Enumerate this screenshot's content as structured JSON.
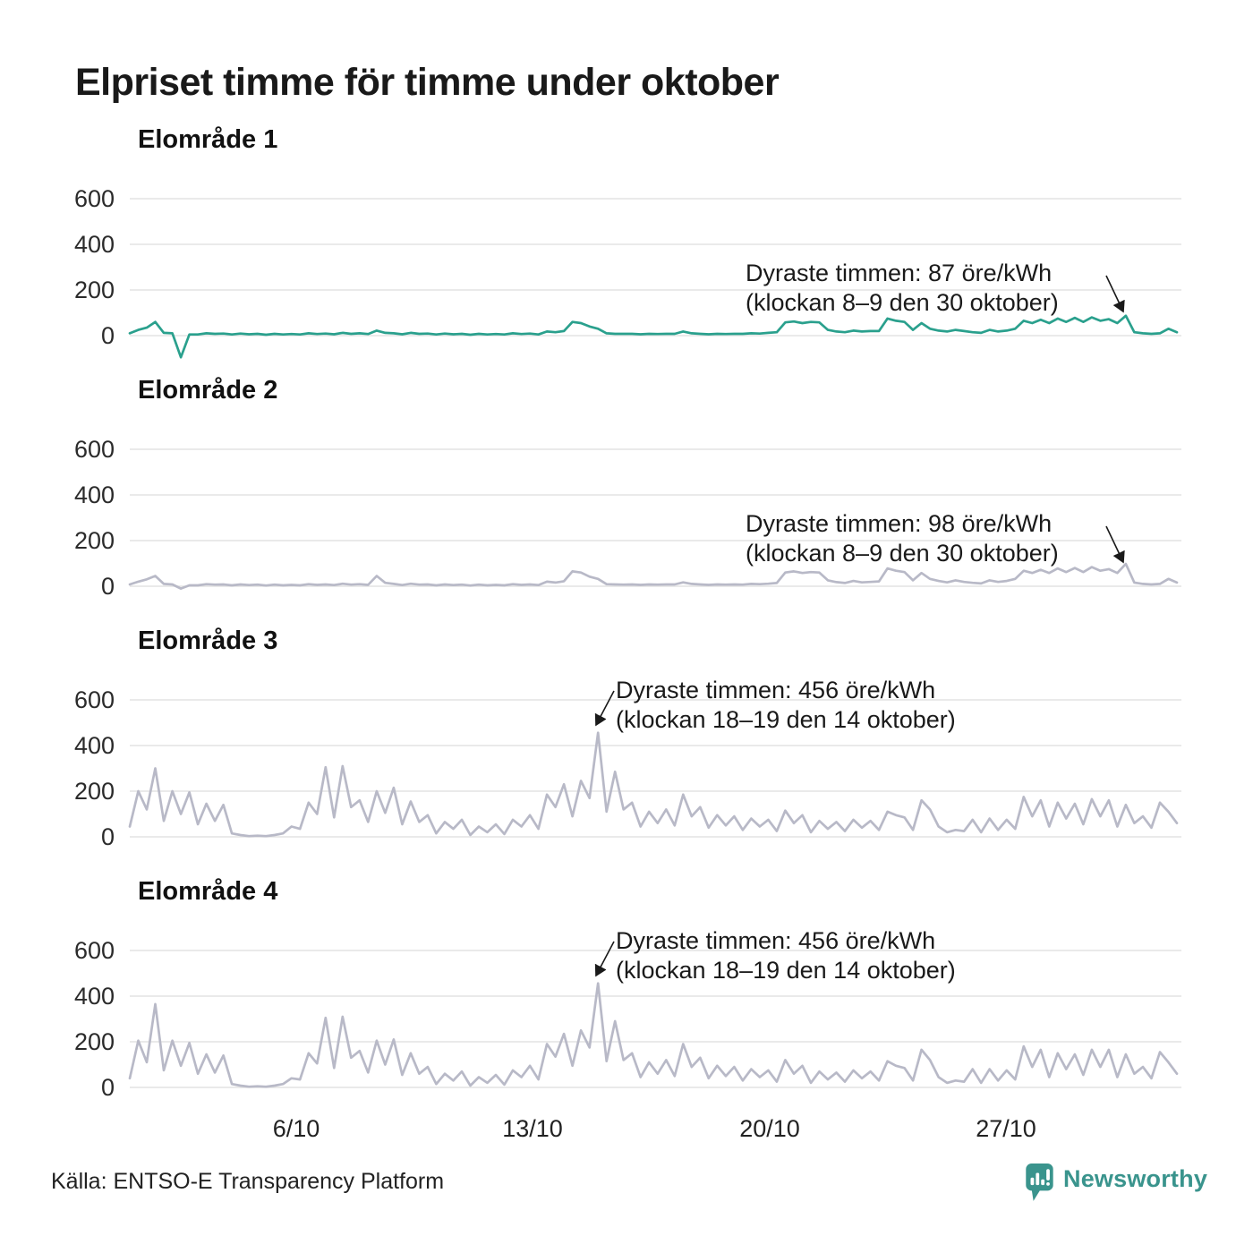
{
  "title": "Elpriset timme för timme under oktober",
  "source": "Källa: ENTSO-E Transparency Platform",
  "brand": {
    "name": "Newsworthy",
    "color": "#3a948d"
  },
  "colors": {
    "teal_line": "#2aa08d",
    "lavender_line": "#b8b9c7",
    "grid": "#e4e4e4",
    "text": "#1a1a1a"
  },
  "y_axis": {
    "ticks": [
      600,
      400,
      200,
      0
    ],
    "tick_labels": [
      "600",
      "400",
      "200",
      "0"
    ]
  },
  "x_axis": {
    "tick_labels": [
      "6/10",
      "13/10",
      "20/10",
      "27/10"
    ]
  },
  "chart_data": [
    {
      "type": "line",
      "name": "Elområde 1",
      "color": "#2aa08d",
      "unit": "öre/kWh",
      "x_range": "1–31 oktober, timvärden (4 punkter per dygn)",
      "ylim": [
        -120,
        700
      ],
      "annotation": {
        "line1": "Dyraste timmen: 87 öre/kWh",
        "line2": "(klockan 8–9 den 30 oktober)"
      },
      "values": [
        10,
        25,
        35,
        60,
        12,
        10,
        -95,
        5,
        5,
        10,
        8,
        9,
        5,
        9,
        6,
        8,
        4,
        8,
        5,
        7,
        5,
        10,
        7,
        9,
        6,
        12,
        8,
        10,
        7,
        22,
        12,
        10,
        6,
        12,
        8,
        9,
        5,
        9,
        6,
        8,
        4,
        8,
        5,
        7,
        5,
        10,
        7,
        9,
        5,
        18,
        15,
        20,
        60,
        55,
        40,
        30,
        10,
        8,
        8,
        8,
        6,
        8,
        7,
        8,
        8,
        18,
        10,
        8,
        6,
        8,
        7,
        8,
        8,
        10,
        9,
        12,
        15,
        58,
        62,
        55,
        60,
        58,
        25,
        18,
        15,
        22,
        18,
        20,
        20,
        75,
        65,
        60,
        25,
        55,
        30,
        22,
        18,
        25,
        20,
        15,
        12,
        25,
        18,
        22,
        30,
        65,
        55,
        70,
        55,
        75,
        60,
        78,
        60,
        80,
        65,
        72,
        55,
        87,
        15,
        10,
        8,
        10,
        30,
        15
      ]
    },
    {
      "type": "line",
      "name": "Elområde 2",
      "color": "#b8b9c7",
      "unit": "öre/kWh",
      "x_range": "1–31 oktober, timvärden (4 punkter per dygn)",
      "ylim": [
        -120,
        700
      ],
      "annotation": {
        "line1": "Dyraste timmen: 98 öre/kWh",
        "line2": "(klockan 8–9 den 30 oktober)"
      },
      "values": [
        8,
        20,
        30,
        45,
        10,
        8,
        -10,
        4,
        4,
        9,
        7,
        8,
        4,
        8,
        5,
        7,
        3,
        7,
        4,
        6,
        4,
        9,
        6,
        8,
        5,
        11,
        7,
        9,
        6,
        45,
        15,
        10,
        5,
        11,
        7,
        8,
        4,
        8,
        5,
        7,
        3,
        7,
        4,
        6,
        4,
        9,
        6,
        8,
        5,
        20,
        16,
        22,
        65,
        60,
        42,
        32,
        9,
        8,
        7,
        8,
        6,
        8,
        7,
        8,
        8,
        17,
        10,
        8,
        6,
        8,
        7,
        8,
        7,
        10,
        9,
        11,
        14,
        60,
        65,
        58,
        62,
        60,
        26,
        18,
        14,
        23,
        17,
        19,
        21,
        78,
        68,
        62,
        26,
        58,
        32,
        23,
        17,
        26,
        19,
        15,
        12,
        26,
        19,
        23,
        32,
        68,
        58,
        72,
        58,
        78,
        62,
        80,
        62,
        84,
        68,
        75,
        58,
        98,
        16,
        10,
        8,
        10,
        32,
        16
      ]
    },
    {
      "type": "line",
      "name": "Elområde 3",
      "color": "#b8b9c7",
      "unit": "öre/kWh",
      "x_range": "1–31 oktober, timvärden (4 punkter per dygn)",
      "ylim": [
        -120,
        700
      ],
      "annotation": {
        "line1": "Dyraste timmen: 456 öre/kWh",
        "line2": "(klockan 18–19 den 14 oktober)"
      },
      "values": [
        45,
        200,
        120,
        300,
        70,
        200,
        100,
        195,
        55,
        145,
        70,
        140,
        15,
        8,
        3,
        5,
        3,
        8,
        15,
        45,
        35,
        150,
        100,
        305,
        85,
        310,
        130,
        160,
        65,
        200,
        105,
        215,
        55,
        155,
        65,
        95,
        15,
        65,
        35,
        75,
        8,
        45,
        20,
        55,
        12,
        75,
        45,
        95,
        35,
        185,
        130,
        230,
        90,
        245,
        170,
        456,
        110,
        285,
        120,
        150,
        45,
        110,
        60,
        120,
        50,
        185,
        90,
        130,
        40,
        95,
        50,
        90,
        30,
        80,
        45,
        75,
        25,
        115,
        60,
        95,
        20,
        70,
        35,
        65,
        25,
        75,
        40,
        70,
        30,
        110,
        95,
        85,
        30,
        160,
        120,
        45,
        20,
        30,
        25,
        75,
        20,
        80,
        30,
        75,
        35,
        175,
        90,
        160,
        45,
        150,
        80,
        145,
        55,
        165,
        90,
        160,
        45,
        140,
        60,
        90,
        40,
        150,
        110,
        60
      ]
    },
    {
      "type": "line",
      "name": "Elområde 4",
      "color": "#b8b9c7",
      "unit": "öre/kWh",
      "x_range": "1–31 oktober, timvärden (4 punkter per dygn)",
      "ylim": [
        -120,
        700
      ],
      "annotation": {
        "line1": "Dyraste timmen: 456 öre/kWh",
        "line2": "(klockan 18–19 den 14 oktober)"
      },
      "values": [
        40,
        205,
        110,
        365,
        75,
        205,
        95,
        195,
        60,
        145,
        65,
        140,
        15,
        8,
        3,
        5,
        3,
        8,
        15,
        40,
        35,
        150,
        105,
        305,
        85,
        310,
        130,
        160,
        65,
        205,
        100,
        210,
        55,
        150,
        60,
        90,
        15,
        60,
        30,
        70,
        8,
        45,
        20,
        55,
        12,
        75,
        45,
        95,
        35,
        190,
        135,
        235,
        95,
        250,
        175,
        456,
        115,
        290,
        120,
        150,
        45,
        110,
        60,
        120,
        50,
        190,
        90,
        130,
        40,
        95,
        50,
        90,
        30,
        80,
        45,
        75,
        25,
        120,
        60,
        95,
        20,
        70,
        35,
        65,
        25,
        75,
        40,
        70,
        30,
        115,
        95,
        85,
        30,
        165,
        120,
        45,
        20,
        30,
        25,
        80,
        20,
        80,
        30,
        75,
        35,
        180,
        90,
        165,
        45,
        150,
        80,
        145,
        55,
        165,
        90,
        165,
        45,
        145,
        60,
        90,
        40,
        155,
        110,
        60
      ]
    }
  ]
}
